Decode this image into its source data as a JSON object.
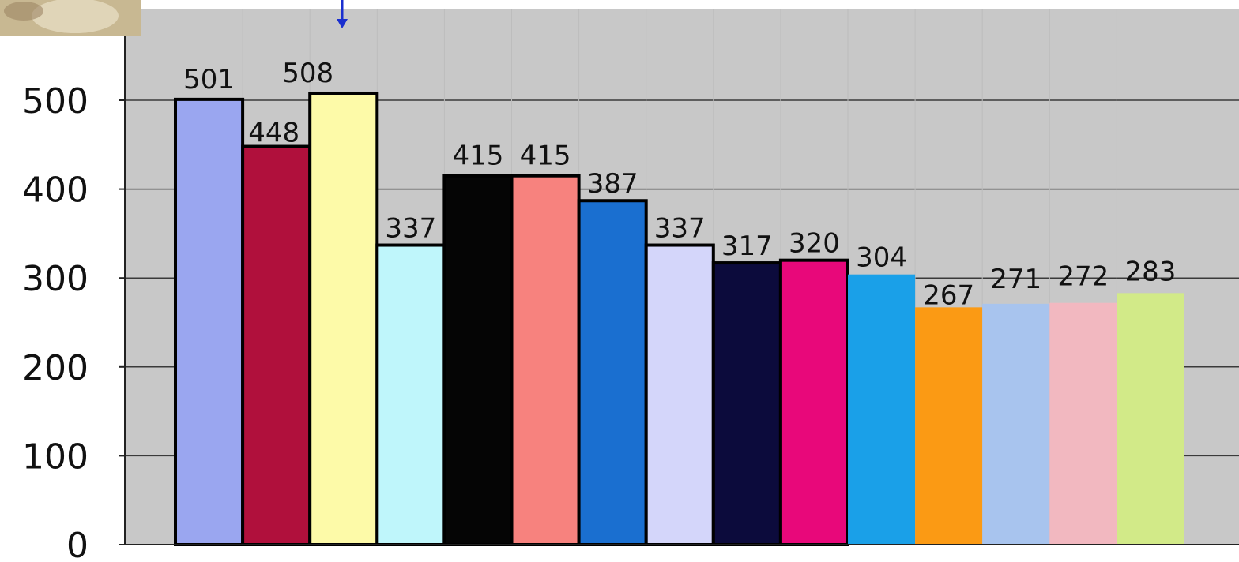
{
  "chart_data": {
    "type": "bar",
    "title": "",
    "xlabel": "",
    "ylabel": "",
    "ylim": [
      0,
      550
    ],
    "yticks": [
      0,
      100,
      200,
      300,
      400,
      500
    ],
    "grid": "horizontal",
    "legend": "none",
    "values": [
      501,
      448,
      508,
      337,
      415,
      415,
      387,
      337,
      317,
      320,
      304,
      267,
      271,
      272,
      283
    ],
    "data_labels": [
      "501",
      "448",
      "508",
      "337",
      "415",
      "415",
      "387",
      "337",
      "317",
      "320",
      "304",
      "267",
      "271",
      "272",
      "283"
    ],
    "ytick_labels": [
      "0",
      "100",
      "200",
      "300",
      "400",
      "500"
    ],
    "colors": [
      "#9aa6f0",
      "#b0103c",
      "#fdfaa8",
      "#bff6fb",
      "#050505",
      "#f7827e",
      "#1a6fd0",
      "#d4d6fa",
      "#0c0b3c",
      "#e8087a",
      "#1aa0e8",
      "#fb9a14",
      "#a8c4ee",
      "#f2b8c0",
      "#d2ea88"
    ],
    "outlined": [
      true,
      true,
      true,
      true,
      true,
      true,
      true,
      true,
      true,
      true,
      false,
      false,
      false,
      false,
      false
    ],
    "plot_background": "#c8c8c8",
    "annotation_arrow_color": "#1a2fcf"
  }
}
